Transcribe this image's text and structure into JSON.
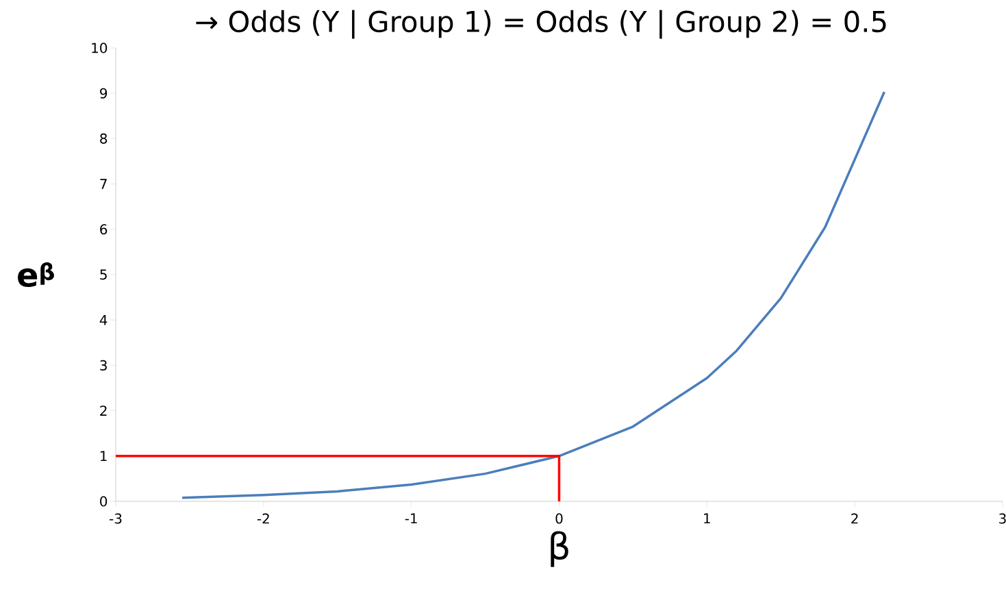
{
  "chart_data": {
    "type": "line",
    "title": "→ Odds (Y | Group 1) = Odds (Y | Group 2) = 0.5",
    "xlabel": "β",
    "ylabel": "e$^{β}$",
    "xlim": [
      -3,
      3
    ],
    "xticks": [
      -3,
      -2,
      -1,
      0,
      1,
      2,
      3
    ],
    "ylim": [
      0,
      10
    ],
    "yticks": [
      0,
      1,
      2,
      3,
      4,
      5,
      6,
      7,
      8,
      9,
      10
    ],
    "grid": false,
    "marker": "none",
    "line_style": "solid",
    "series": [
      {
        "color": "#4a7ebb",
        "x": [
          -2.55,
          -2,
          -1.5,
          -1,
          -0.5,
          0,
          0.5,
          1,
          1.2,
          1.5,
          1.8,
          2.2
        ],
        "values": [
          0.08,
          0.14,
          0.22,
          0.37,
          0.61,
          1,
          1.65,
          2.72,
          3.32,
          4.48,
          6.05,
          9.03
        ]
      },
      {
        "color": "#ff0000",
        "x": [
          -3,
          0,
          0
        ],
        "values": [
          1,
          1,
          0
        ]
      }
    ]
  }
}
